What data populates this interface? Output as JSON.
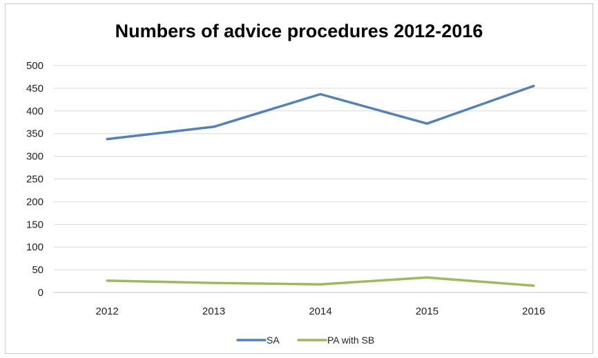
{
  "chart_data": {
    "type": "line",
    "title": "Numbers of advice procedures 2012-2016",
    "xlabel": "",
    "ylabel": "",
    "categories": [
      "2012",
      "2013",
      "2014",
      "2015",
      "2016"
    ],
    "y_ticks": [
      "0",
      "50",
      "100",
      "150",
      "200",
      "250",
      "300",
      "350",
      "400",
      "450",
      "500"
    ],
    "ylim": [
      0,
      500
    ],
    "grid": "horizontal",
    "legend_position": "bottom",
    "series": [
      {
        "name": "SA",
        "values": [
          338,
          365,
          437,
          372,
          455
        ],
        "color": "#4f81bd"
      },
      {
        "name": "PA with SB",
        "values": [
          26,
          21,
          18,
          33,
          15
        ],
        "color": "#9bbb59"
      }
    ]
  }
}
